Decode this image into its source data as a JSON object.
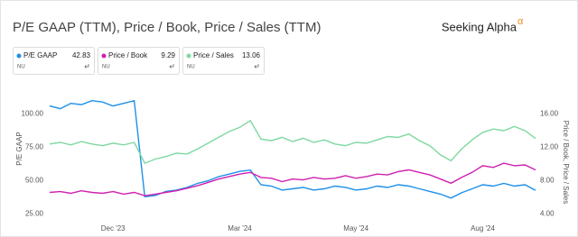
{
  "chart_data": {
    "type": "line",
    "title": "P/E GAAP (TTM), Price / Book, Price / Sales (TTM)",
    "logo": "Seeking Alpha",
    "logo_mark": "α",
    "ylabel": "P/E GAAP",
    "y2label": "Price / Book, Price / Sales",
    "categories": [
      null,
      null,
      null,
      null,
      null,
      null,
      "Dec '23",
      null,
      null,
      null,
      null,
      null,
      null,
      null,
      null,
      null,
      null,
      null,
      "Mar '24",
      null,
      null,
      null,
      null,
      null,
      null,
      null,
      null,
      null,
      null,
      "May '24",
      null,
      null,
      null,
      null,
      null,
      null,
      null,
      null,
      null,
      null,
      null,
      "Aug '24",
      null,
      null,
      null,
      null,
      null
    ],
    "ylim": [
      20,
      112.5
    ],
    "yticks": [
      {
        "value": 25,
        "label": "25.00"
      },
      {
        "value": 50,
        "label": "50.00"
      },
      {
        "value": 75,
        "label": "75.00"
      },
      {
        "value": 100,
        "label": "100.00"
      }
    ],
    "y2lim": [
      3.2,
      18
    ],
    "y2ticks": [
      {
        "value": 4,
        "label": "4.00"
      },
      {
        "value": 8,
        "label": "8.00"
      },
      {
        "value": 12,
        "label": "12.00"
      },
      {
        "value": 16,
        "label": "16.00"
      }
    ],
    "series": [
      {
        "name": "P/E GAAP",
        "ticker": "NU",
        "color": "#1e90e8",
        "values": [
          106,
          104,
          108,
          107,
          110,
          109,
          106,
          108,
          110,
          38,
          39,
          42,
          43,
          45,
          48,
          50,
          53,
          55,
          57,
          58,
          47,
          46,
          43,
          44,
          45,
          43,
          44,
          46,
          45,
          43,
          44,
          46,
          45,
          47,
          46,
          44,
          42,
          40,
          37,
          41,
          44,
          47,
          46,
          48,
          46,
          47,
          42.83
        ]
      },
      {
        "name": "Price / Book",
        "ticker": "NU",
        "color": "#d020b0",
        "axis": "y2",
        "values": [
          6.6,
          6.7,
          6.5,
          6.8,
          6.6,
          6.5,
          6.7,
          6.4,
          6.6,
          6.2,
          6.4,
          6.6,
          6.8,
          7.1,
          7.4,
          7.8,
          8.2,
          8.5,
          8.8,
          9.0,
          8.4,
          8.3,
          7.9,
          8.2,
          8.1,
          8.4,
          8.2,
          8.3,
          8.6,
          8.3,
          8.5,
          8.8,
          8.7,
          9.1,
          9.3,
          9.0,
          8.7,
          8.2,
          7.7,
          8.4,
          9.0,
          9.8,
          9.6,
          10.1,
          9.8,
          9.9,
          9.29
        ]
      },
      {
        "name": "Price / Sales",
        "ticker": "NU",
        "color": "#7ed8a0",
        "axis": "y2",
        "values": [
          12.4,
          12.6,
          12.3,
          12.7,
          12.4,
          12.2,
          12.5,
          12.3,
          12.6,
          10.1,
          10.6,
          10.9,
          11.3,
          11.2,
          11.8,
          12.5,
          13.2,
          13.9,
          14.4,
          15.2,
          13.0,
          12.8,
          13.2,
          12.7,
          13.1,
          12.6,
          12.9,
          12.4,
          12.2,
          12.6,
          12.5,
          12.9,
          13.3,
          13.2,
          13.6,
          12.8,
          12.2,
          11.1,
          10.4,
          11.8,
          12.9,
          13.8,
          14.2,
          14.0,
          14.5,
          14.0,
          13.06
        ]
      }
    ]
  }
}
